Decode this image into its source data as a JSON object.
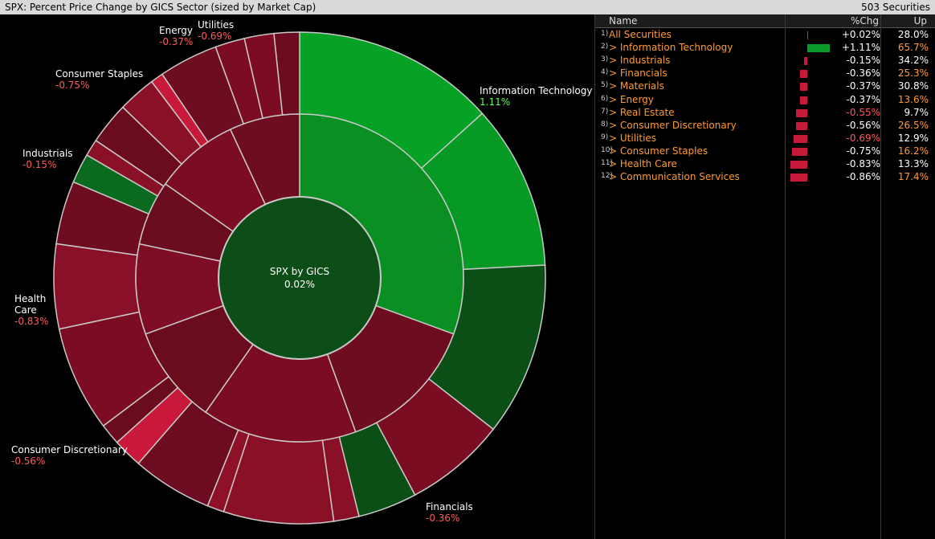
{
  "window": {
    "title": "SPX: Percent Price Change by GICS Sector (sized by Market Cap)",
    "securities_count": "503 Securities"
  },
  "chart": {
    "center_title": "SPX by GICS",
    "center_value": "0.02%",
    "center_color": "#0d4d18",
    "labels": [
      {
        "name": "Information Technology",
        "value": "1.11%",
        "sign": "pos"
      },
      {
        "name": "Financials",
        "value": "-0.36%",
        "sign": "neg"
      },
      {
        "name": "Consumer Discretionary",
        "value": "-0.56%",
        "sign": "neg"
      },
      {
        "name": "Health",
        "name2": "Care",
        "value": "-0.83%",
        "sign": "neg"
      },
      {
        "name": "Industrials",
        "value": "-0.15%",
        "sign": "neg"
      },
      {
        "name": "Consumer Staples",
        "value": "-0.75%",
        "sign": "neg"
      },
      {
        "name": "Energy",
        "value": "-0.37%",
        "sign": "neg"
      },
      {
        "name": "Utilities",
        "value": "-0.69%",
        "sign": "neg"
      }
    ]
  },
  "table": {
    "headers": {
      "name": "Name",
      "chg": "%Chg",
      "up": "Up"
    },
    "rows": [
      {
        "idx": "1)",
        "name": "All Securities",
        "chg": "+0.02%",
        "up": "28.0%",
        "bar": 0.02
      },
      {
        "idx": "2)",
        "name": "> Information Technology",
        "chg": "+1.11%",
        "up": "65.7%",
        "bar": 1.11
      },
      {
        "idx": "3)",
        "name": "> Industrials",
        "chg": "-0.15%",
        "up": "34.2%",
        "bar": -0.15
      },
      {
        "idx": "4)",
        "name": "> Financials",
        "chg": "-0.36%",
        "up": "25.3%",
        "bar": -0.36
      },
      {
        "idx": "5)",
        "name": "> Materials",
        "chg": "-0.37%",
        "up": "30.8%",
        "bar": -0.37
      },
      {
        "idx": "6)",
        "name": "> Energy",
        "chg": "-0.37%",
        "up": "13.6%",
        "bar": -0.37
      },
      {
        "idx": "7)",
        "name": "> Real Estate",
        "chg": "-0.55%",
        "up": "9.7%",
        "bar": -0.55
      },
      {
        "idx": "8)",
        "name": "> Consumer Discretionary",
        "chg": "-0.56%",
        "up": "26.5%",
        "bar": -0.56
      },
      {
        "idx": "9)",
        "name": "> Utilities",
        "chg": "-0.69%",
        "up": "12.9%",
        "bar": -0.69
      },
      {
        "idx": "10)",
        "name": "> Consumer Staples",
        "chg": "-0.75%",
        "up": "16.2%",
        "bar": -0.75
      },
      {
        "idx": "11)",
        "name": "> Health Care",
        "chg": "-0.83%",
        "up": "13.3%",
        "bar": -0.83
      },
      {
        "idx": "12)",
        "name": "> Communication Services",
        "chg": "-0.86%",
        "up": "17.4%",
        "bar": -0.86
      }
    ]
  },
  "colors": {
    "positive_bar": "#0a9a2a",
    "negative_bar": "#c8193a",
    "name_orange": "#ff9a2e",
    "negative_text": "#ff5a5a",
    "positive_text": "#5bff5b"
  }
}
